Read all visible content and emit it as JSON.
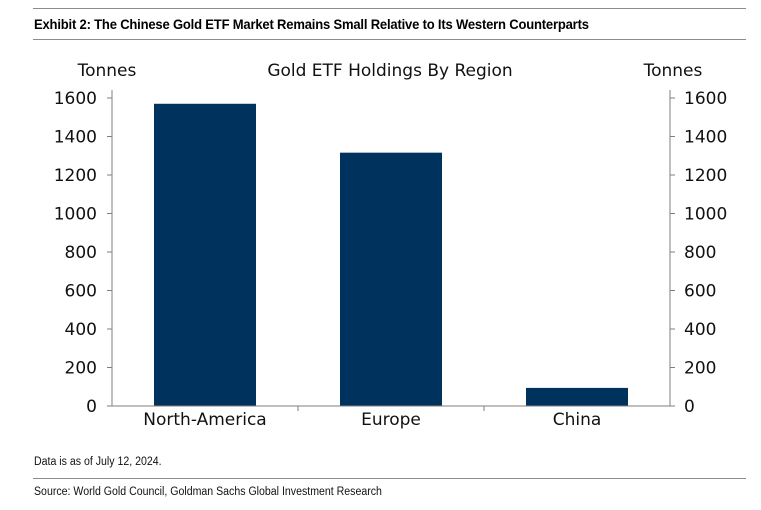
{
  "exhibit_title": "Exhibit 2: The Chinese Gold ETF Market Remains Small Relative to Its Western Counterparts",
  "footnote": "Data is as of July 12, 2024.",
  "source": "Source: World Gold Council, Goldman Sachs Global Investment Research",
  "colors": {
    "bar": "#00325e",
    "axis": "#7f7f7f"
  },
  "chart_data": {
    "type": "bar",
    "title": "Gold ETF Holdings By Region",
    "ylabel_left": "Tonnes",
    "ylabel_right": "Tonnes",
    "categories": [
      "North-America",
      "Europe",
      "China"
    ],
    "values": [
      1570,
      1316,
      94
    ],
    "ylim": [
      0,
      1600
    ],
    "yticks": [
      "0",
      "200",
      "400",
      "600",
      "800",
      "1000",
      "1200",
      "1400",
      "1600"
    ],
    "grid": false,
    "legend": "none"
  }
}
